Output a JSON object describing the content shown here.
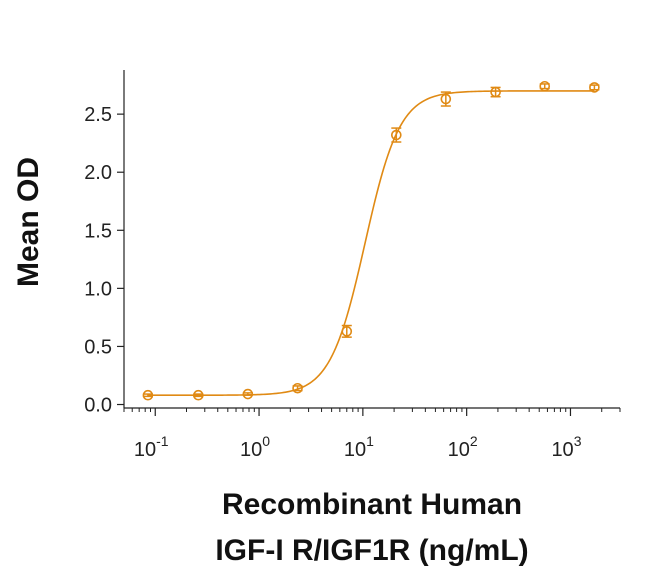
{
  "chart_data": {
    "type": "scatter",
    "xscale": "log",
    "xlabel_lines": [
      "Recombinant Human",
      "IGF-I R/IGF1R (ng/mL)"
    ],
    "ylabel": "Mean OD",
    "xlim": [
      0.05,
      3000
    ],
    "ylim": [
      -0.03,
      2.88
    ],
    "x_ticks": [
      {
        "base": "10",
        "exp": "-1",
        "value": 0.1
      },
      {
        "base": "10",
        "exp": "0",
        "value": 1
      },
      {
        "base": "10",
        "exp": "1",
        "value": 10
      },
      {
        "base": "10",
        "exp": "2",
        "value": 100
      },
      {
        "base": "10",
        "exp": "3",
        "value": 1000
      }
    ],
    "y_ticks": [
      {
        "label": "0.0",
        "value": 0.0
      },
      {
        "label": "0.5",
        "value": 0.5
      },
      {
        "label": "1.0",
        "value": 1.0
      },
      {
        "label": "1.5",
        "value": 1.5
      },
      {
        "label": "2.0",
        "value": 2.0
      },
      {
        "label": "2.5",
        "value": 2.5
      }
    ],
    "series": [
      {
        "color": "#E08A14",
        "points": [
          {
            "x": 0.085,
            "y": 0.08,
            "err": 0.01
          },
          {
            "x": 0.26,
            "y": 0.08,
            "err": 0.01
          },
          {
            "x": 0.78,
            "y": 0.09,
            "err": 0.01
          },
          {
            "x": 2.35,
            "y": 0.14,
            "err": 0.02
          },
          {
            "x": 7.0,
            "y": 0.63,
            "err": 0.05
          },
          {
            "x": 21.0,
            "y": 2.32,
            "err": 0.06
          },
          {
            "x": 63.0,
            "y": 2.63,
            "err": 0.06
          },
          {
            "x": 190.0,
            "y": 2.69,
            "err": 0.04
          },
          {
            "x": 565.0,
            "y": 2.74,
            "err": 0.02
          },
          {
            "x": 1700.0,
            "y": 2.73,
            "err": 0.02
          }
        ],
        "fit": {
          "bottom": 0.08,
          "top": 2.7,
          "ec50": 10.5,
          "hill": 2.6
        }
      }
    ]
  }
}
